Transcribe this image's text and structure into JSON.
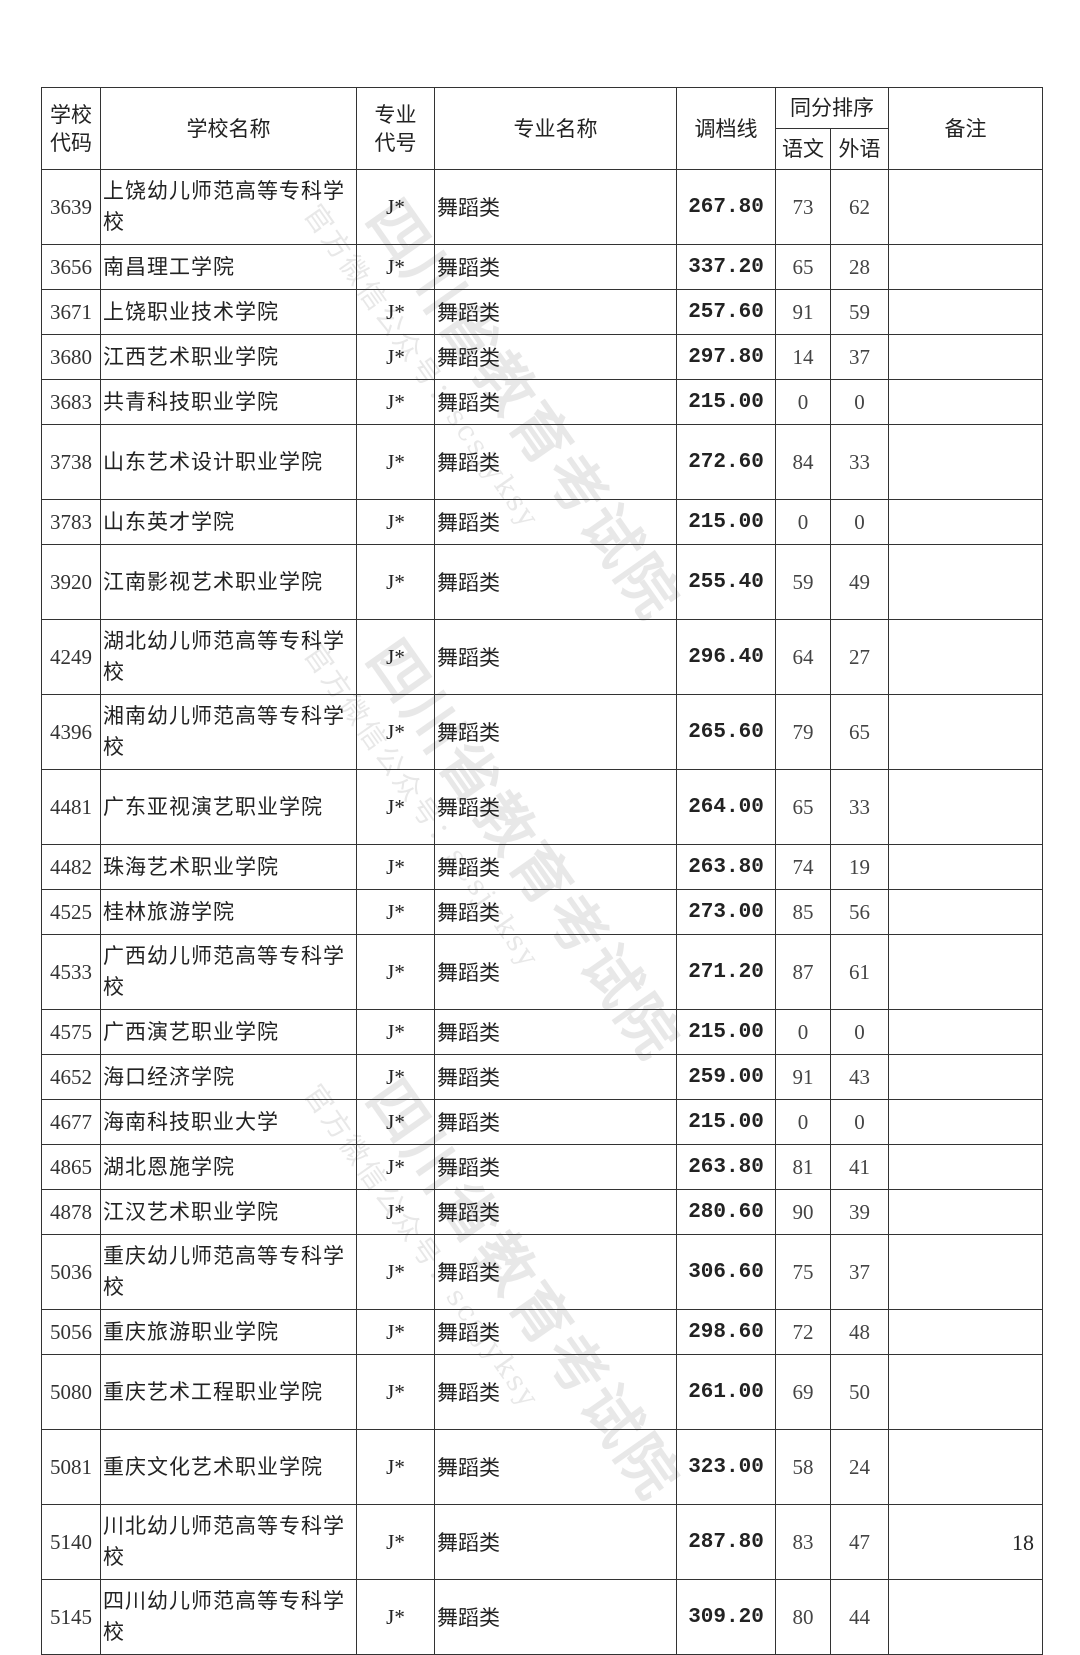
{
  "headers": {
    "school_code": "学校代码",
    "school_name": "学校名称",
    "major_code": "专业代号",
    "major_name": "专业名称",
    "cutoff": "调档线",
    "tie_order": "同分排序",
    "chinese": "语文",
    "foreign": "外语",
    "remarks": "备注"
  },
  "rows": [
    {
      "code": "3639",
      "name": "上饶幼儿师范高等专科学校",
      "mcode": "J*",
      "mname": "舞蹈类",
      "line": "267.80",
      "cn": "73",
      "fl": "62",
      "remark": ""
    },
    {
      "code": "3656",
      "name": "南昌理工学院",
      "mcode": "J*",
      "mname": "舞蹈类",
      "line": "337.20",
      "cn": "65",
      "fl": "28",
      "remark": ""
    },
    {
      "code": "3671",
      "name": "上饶职业技术学院",
      "mcode": "J*",
      "mname": "舞蹈类",
      "line": "257.60",
      "cn": "91",
      "fl": "59",
      "remark": ""
    },
    {
      "code": "3680",
      "name": "江西艺术职业学院",
      "mcode": "J*",
      "mname": "舞蹈类",
      "line": "297.80",
      "cn": "14",
      "fl": "37",
      "remark": ""
    },
    {
      "code": "3683",
      "name": "共青科技职业学院",
      "mcode": "J*",
      "mname": "舞蹈类",
      "line": "215.00",
      "cn": "0",
      "fl": "0",
      "remark": ""
    },
    {
      "code": "3738",
      "name": "山东艺术设计职业学院",
      "mcode": "J*",
      "mname": "舞蹈类",
      "line": "272.60",
      "cn": "84",
      "fl": "33",
      "remark": ""
    },
    {
      "code": "3783",
      "name": "山东英才学院",
      "mcode": "J*",
      "mname": "舞蹈类",
      "line": "215.00",
      "cn": "0",
      "fl": "0",
      "remark": ""
    },
    {
      "code": "3920",
      "name": "江南影视艺术职业学院",
      "mcode": "J*",
      "mname": "舞蹈类",
      "line": "255.40",
      "cn": "59",
      "fl": "49",
      "remark": ""
    },
    {
      "code": "4249",
      "name": "湖北幼儿师范高等专科学校",
      "mcode": "J*",
      "mname": "舞蹈类",
      "line": "296.40",
      "cn": "64",
      "fl": "27",
      "remark": ""
    },
    {
      "code": "4396",
      "name": "湘南幼儿师范高等专科学校",
      "mcode": "J*",
      "mname": "舞蹈类",
      "line": "265.60",
      "cn": "79",
      "fl": "65",
      "remark": ""
    },
    {
      "code": "4481",
      "name": "广东亚视演艺职业学院",
      "mcode": "J*",
      "mname": "舞蹈类",
      "line": "264.00",
      "cn": "65",
      "fl": "33",
      "remark": ""
    },
    {
      "code": "4482",
      "name": "珠海艺术职业学院",
      "mcode": "J*",
      "mname": "舞蹈类",
      "line": "263.80",
      "cn": "74",
      "fl": "19",
      "remark": ""
    },
    {
      "code": "4525",
      "name": "桂林旅游学院",
      "mcode": "J*",
      "mname": "舞蹈类",
      "line": "273.00",
      "cn": "85",
      "fl": "56",
      "remark": ""
    },
    {
      "code": "4533",
      "name": "广西幼儿师范高等专科学校",
      "mcode": "J*",
      "mname": "舞蹈类",
      "line": "271.20",
      "cn": "87",
      "fl": "61",
      "remark": ""
    },
    {
      "code": "4575",
      "name": "广西演艺职业学院",
      "mcode": "J*",
      "mname": "舞蹈类",
      "line": "215.00",
      "cn": "0",
      "fl": "0",
      "remark": ""
    },
    {
      "code": "4652",
      "name": "海口经济学院",
      "mcode": "J*",
      "mname": "舞蹈类",
      "line": "259.00",
      "cn": "91",
      "fl": "43",
      "remark": ""
    },
    {
      "code": "4677",
      "name": "海南科技职业大学",
      "mcode": "J*",
      "mname": "舞蹈类",
      "line": "215.00",
      "cn": "0",
      "fl": "0",
      "remark": ""
    },
    {
      "code": "4865",
      "name": "湖北恩施学院",
      "mcode": "J*",
      "mname": "舞蹈类",
      "line": "263.80",
      "cn": "81",
      "fl": "41",
      "remark": ""
    },
    {
      "code": "4878",
      "name": "江汉艺术职业学院",
      "mcode": "J*",
      "mname": "舞蹈类",
      "line": "280.60",
      "cn": "90",
      "fl": "39",
      "remark": ""
    },
    {
      "code": "5036",
      "name": "重庆幼儿师范高等专科学校",
      "mcode": "J*",
      "mname": "舞蹈类",
      "line": "306.60",
      "cn": "75",
      "fl": "37",
      "remark": ""
    },
    {
      "code": "5056",
      "name": "重庆旅游职业学院",
      "mcode": "J*",
      "mname": "舞蹈类",
      "line": "298.60",
      "cn": "72",
      "fl": "48",
      "remark": ""
    },
    {
      "code": "5080",
      "name": "重庆艺术工程职业学院",
      "mcode": "J*",
      "mname": "舞蹈类",
      "line": "261.00",
      "cn": "69",
      "fl": "50",
      "remark": ""
    },
    {
      "code": "5081",
      "name": "重庆文化艺术职业学院",
      "mcode": "J*",
      "mname": "舞蹈类",
      "line": "323.00",
      "cn": "58",
      "fl": "24",
      "remark": ""
    },
    {
      "code": "5140",
      "name": "川北幼儿师范高等专科学校",
      "mcode": "J*",
      "mname": "舞蹈类",
      "line": "287.80",
      "cn": "83",
      "fl": "47",
      "remark": ""
    },
    {
      "code": "5145",
      "name": "四川幼儿师范高等专科学校",
      "mcode": "J*",
      "mname": "舞蹈类",
      "line": "309.20",
      "cn": "80",
      "fl": "44",
      "remark": ""
    }
  ],
  "watermark": {
    "org": "四川省教育考试院",
    "account": "官方微信公众号：scsjyksy"
  },
  "page_number": "18"
}
